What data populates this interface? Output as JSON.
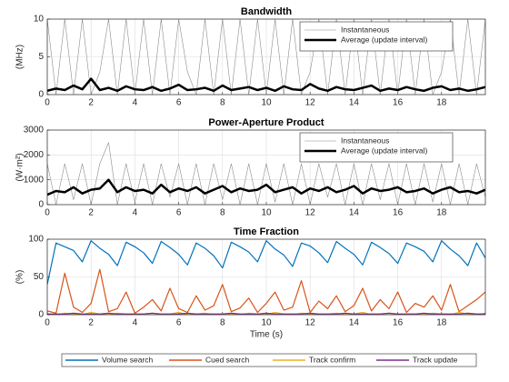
{
  "chart_data": [
    {
      "type": "line",
      "title": "Bandwidth",
      "ylabel": "(MHz)",
      "x": [
        0,
        0.4,
        0.8,
        1.2,
        1.6,
        2,
        2.4,
        2.8,
        3.2,
        3.6,
        4,
        4.4,
        4.8,
        5.2,
        5.6,
        6,
        6.4,
        6.8,
        7.2,
        7.6,
        8,
        8.4,
        8.8,
        9.2,
        9.6,
        10,
        10.4,
        10.8,
        11.2,
        11.6,
        12,
        12.4,
        12.8,
        13.2,
        13.6,
        14,
        14.4,
        14.8,
        15.2,
        15.6,
        16,
        16.4,
        16.8,
        17.2,
        17.6,
        18,
        18.4,
        18.8,
        19.2,
        19.6,
        20
      ],
      "series": [
        {
          "name": "Instantaneous",
          "color": "#8c8c8c",
          "linewidth": 0.6,
          "values": [
            10,
            0,
            10,
            0,
            10,
            0,
            3,
            10,
            0,
            10,
            0,
            10,
            0,
            10,
            0,
            10,
            3,
            0,
            10,
            0,
            10,
            0,
            10,
            0,
            10,
            0,
            10,
            0,
            10,
            0,
            3,
            10,
            0,
            10,
            0,
            10,
            0,
            10,
            0,
            10,
            0,
            10,
            0,
            10,
            0,
            3,
            10,
            0,
            10,
            0,
            10
          ]
        },
        {
          "name": "Average (update interval)",
          "color": "#000000",
          "linewidth": 2.5,
          "values": [
            0.5,
            0.8,
            0.6,
            1.2,
            0.7,
            2.1,
            0.6,
            0.9,
            0.5,
            1.1,
            0.7,
            0.6,
            1.0,
            0.5,
            0.8,
            1.3,
            0.6,
            0.7,
            0.9,
            0.5,
            1.2,
            0.6,
            0.8,
            1.0,
            0.6,
            0.9,
            0.5,
            1.1,
            0.7,
            0.6,
            1.4,
            0.8,
            0.5,
            1.0,
            0.7,
            0.6,
            0.9,
            1.2,
            0.5,
            0.8,
            0.6,
            1.0,
            0.7,
            0.5,
            0.9,
            1.1,
            0.6,
            0.8,
            0.5,
            0.7,
            1.0
          ]
        }
      ],
      "xlim": [
        0,
        20
      ],
      "xticks": [
        0,
        2,
        4,
        6,
        8,
        10,
        12,
        14,
        16,
        18
      ],
      "ylim": [
        0,
        10
      ],
      "yticks": [
        0,
        5,
        10
      ],
      "grid": true,
      "legend": "northeast"
    },
    {
      "type": "line",
      "title": "Power-Aperture Product",
      "ylabel": "(W·m²)",
      "x": [
        0,
        0.4,
        0.8,
        1.2,
        1.6,
        2,
        2.4,
        2.8,
        3.2,
        3.6,
        4,
        4.4,
        4.8,
        5.2,
        5.6,
        6,
        6.4,
        6.8,
        7.2,
        7.6,
        8,
        8.4,
        8.8,
        9.2,
        9.6,
        10,
        10.4,
        10.8,
        11.2,
        11.6,
        12,
        12.4,
        12.8,
        13.2,
        13.6,
        14,
        14.4,
        14.8,
        15.2,
        15.6,
        16,
        16.4,
        16.8,
        17.2,
        17.6,
        18,
        18.4,
        18.8,
        19.2,
        19.6,
        20
      ],
      "series": [
        {
          "name": "Instantaneous",
          "color": "#8c8c8c",
          "linewidth": 0.6,
          "values": [
            1650,
            0,
            1650,
            200,
            1650,
            0,
            1650,
            2500,
            0,
            1650,
            100,
            1650,
            0,
            1650,
            300,
            1650,
            0,
            1650,
            0,
            1650,
            200,
            1650,
            0,
            1650,
            0,
            1650,
            100,
            1650,
            0,
            1650,
            0,
            1650,
            300,
            1650,
            0,
            1650,
            0,
            1650,
            200,
            1650,
            0,
            1650,
            0,
            1650,
            100,
            1650,
            0,
            1650,
            0,
            1650,
            300
          ]
        },
        {
          "name": "Average (update interval)",
          "color": "#000000",
          "linewidth": 2.5,
          "values": [
            400,
            550,
            500,
            700,
            450,
            600,
            650,
            1000,
            500,
            700,
            550,
            600,
            450,
            800,
            500,
            650,
            550,
            700,
            450,
            600,
            750,
            500,
            650,
            550,
            600,
            800,
            500,
            600,
            700,
            450,
            650,
            550,
            700,
            500,
            600,
            750,
            450,
            650,
            550,
            600,
            700,
            500,
            550,
            650,
            450,
            600,
            700,
            500,
            550,
            450,
            600
          ]
        }
      ],
      "xlim": [
        0,
        20
      ],
      "xticks": [
        0,
        2,
        4,
        6,
        8,
        10,
        12,
        14,
        16,
        18
      ],
      "ylim": [
        0,
        3000
      ],
      "yticks": [
        0,
        1000,
        2000,
        3000
      ],
      "grid": true,
      "legend": "northeast"
    },
    {
      "type": "line",
      "title": "Time Fraction",
      "ylabel": "(%)",
      "xlabel": "Time (s)",
      "x": [
        0,
        0.4,
        0.8,
        1.2,
        1.6,
        2,
        2.4,
        2.8,
        3.2,
        3.6,
        4,
        4.4,
        4.8,
        5.2,
        5.6,
        6,
        6.4,
        6.8,
        7.2,
        7.6,
        8,
        8.4,
        8.8,
        9.2,
        9.6,
        10,
        10.4,
        10.8,
        11.2,
        11.6,
        12,
        12.4,
        12.8,
        13.2,
        13.6,
        14,
        14.4,
        14.8,
        15.2,
        15.6,
        16,
        16.4,
        16.8,
        17.2,
        17.6,
        18,
        18.4,
        18.8,
        19.2,
        19.6,
        20
      ],
      "series": [
        {
          "name": "Volume search",
          "color": "#0072bd",
          "linewidth": 1.2,
          "values": [
            40,
            95,
            90,
            85,
            70,
            98,
            88,
            80,
            65,
            96,
            90,
            82,
            68,
            97,
            89,
            80,
            66,
            95,
            88,
            78,
            62,
            96,
            90,
            83,
            70,
            98,
            87,
            79,
            64,
            95,
            91,
            82,
            69,
            97,
            88,
            80,
            66,
            96,
            89,
            81,
            68,
            95,
            90,
            84,
            70,
            98,
            87,
            78,
            65,
            95,
            75
          ]
        },
        {
          "name": "Cued search",
          "color": "#d95319",
          "linewidth": 1.2,
          "values": [
            5,
            2,
            55,
            10,
            3,
            15,
            60,
            4,
            8,
            30,
            2,
            10,
            20,
            5,
            35,
            8,
            3,
            25,
            6,
            12,
            40,
            4,
            9,
            22,
            3,
            15,
            30,
            6,
            10,
            45,
            3,
            18,
            8,
            25,
            4,
            12,
            35,
            5,
            20,
            8,
            30,
            3,
            15,
            10,
            25,
            6,
            40,
            4,
            12,
            20,
            30
          ]
        },
        {
          "name": "Track confirm",
          "color": "#edb120",
          "linewidth": 1.2,
          "values": [
            1,
            0,
            2,
            1,
            0,
            3,
            1,
            0,
            2,
            1,
            0,
            1,
            2,
            0,
            1,
            3,
            0,
            1,
            2,
            0,
            1,
            1,
            0,
            2,
            1,
            0,
            3,
            1,
            0,
            2,
            1,
            0,
            1,
            2,
            0,
            1,
            3,
            0,
            1,
            2,
            0,
            1,
            1,
            0,
            2,
            1,
            0,
            3,
            1,
            0,
            2
          ]
        },
        {
          "name": "Track update",
          "color": "#7e2f8e",
          "linewidth": 1.2,
          "values": [
            1,
            1,
            1,
            2,
            1,
            1,
            1,
            2,
            1,
            1,
            1,
            1,
            2,
            1,
            1,
            1,
            2,
            1,
            1,
            1,
            1,
            2,
            1,
            1,
            1,
            2,
            1,
            1,
            1,
            1,
            2,
            1,
            1,
            1,
            2,
            1,
            1,
            1,
            1,
            2,
            1,
            1,
            1,
            2,
            1,
            1,
            1,
            1,
            2,
            1,
            1
          ]
        }
      ],
      "xlim": [
        0,
        20
      ],
      "xticks": [
        0,
        2,
        4,
        6,
        8,
        10,
        12,
        14,
        16,
        18
      ],
      "ylim": [
        0,
        100
      ],
      "yticks": [
        0,
        50,
        100
      ],
      "grid": true,
      "legend": "south-outside"
    }
  ]
}
